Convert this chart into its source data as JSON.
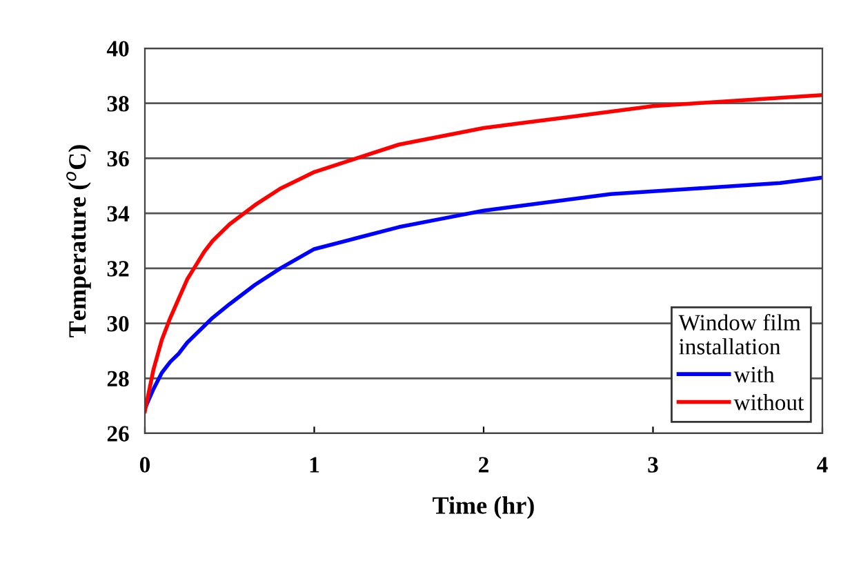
{
  "chart_data": {
    "type": "line",
    "xlabel": "Time (hr)",
    "ylabel": "Temperature ($^{o}$C)",
    "legend_title": "Window film installation",
    "xlim": [
      0,
      4
    ],
    "xticks": [
      0,
      1,
      2,
      3,
      4
    ],
    "ylim": [
      26,
      40
    ],
    "yticks": [
      26,
      28,
      30,
      32,
      34,
      36,
      38,
      40
    ],
    "grid": "y",
    "legend": "bottom right",
    "x": [
      0,
      0.05,
      0.1,
      0.15,
      0.2,
      0.25,
      0.3,
      0.35,
      0.4,
      0.5,
      0.65,
      0.8,
      1.0,
      1.25,
      1.5,
      1.75,
      2.0,
      2.25,
      2.5,
      2.75,
      3.0,
      3.25,
      3.5,
      3.75,
      4.0
    ],
    "series": [
      {
        "name": "with",
        "color": "#0000ff",
        "values": [
          26.9,
          27.6,
          28.2,
          28.6,
          28.9,
          29.3,
          29.6,
          29.9,
          30.2,
          30.7,
          31.4,
          32.0,
          32.7,
          33.1,
          33.5,
          33.8,
          34.1,
          34.3,
          34.5,
          34.7,
          34.8,
          34.9,
          35.0,
          35.1,
          35.3
        ]
      },
      {
        "name": "without",
        "color": "#ff0000",
        "values": [
          26.8,
          28.3,
          29.4,
          30.2,
          30.9,
          31.6,
          32.1,
          32.6,
          33.0,
          33.6,
          34.3,
          34.9,
          35.5,
          36.0,
          36.5,
          36.8,
          37.1,
          37.3,
          37.5,
          37.7,
          37.9,
          38.0,
          38.1,
          38.2,
          38.3
        ]
      }
    ]
  }
}
